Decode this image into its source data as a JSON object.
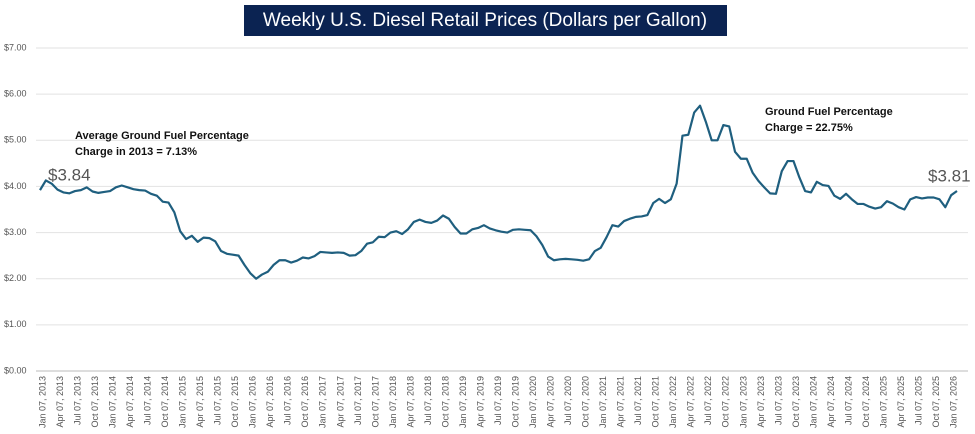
{
  "chart_data": {
    "type": "line",
    "title": "Weekly U.S. Diesel Retail Prices  (Dollars per Gallon)",
    "categories": [
      "Jan 07, 2013",
      null,
      null,
      "Apr 07, 2013",
      null,
      null,
      "Jul 07, 2013",
      null,
      null,
      "Oct 07, 2013",
      null,
      null,
      "Jan 07, 2014",
      null,
      null,
      "Apr 07, 2014",
      null,
      null,
      "Jul 07, 2014",
      null,
      null,
      "Oct 07, 2014",
      null,
      null,
      "Jan 07, 2015",
      null,
      null,
      "Apr 07, 2015",
      null,
      null,
      "Jul 07, 2015",
      null,
      null,
      "Oct 07, 2015",
      null,
      null,
      "Jan 07, 2016",
      null,
      null,
      "Apr 07, 2016",
      null,
      null,
      "Jul 07, 2016",
      null,
      null,
      "Oct 07, 2016",
      null,
      null,
      "Jan 07, 2017",
      null,
      null,
      "Apr 07, 2017",
      null,
      null,
      "Jul 07, 2017",
      null,
      null,
      "Oct 07, 2017",
      null,
      null,
      "Jan 07, 2018",
      null,
      null,
      "Apr 07, 2018",
      null,
      null,
      "Jul 07, 2018",
      null,
      null,
      "Oct 07, 2018",
      null,
      null,
      "Jan 07, 2019",
      null,
      null,
      "Apr 07, 2019",
      null,
      null,
      "Jul 07, 2019",
      null,
      null,
      "Oct 07, 2019",
      null,
      null,
      "Jan 07, 2020",
      null,
      null,
      "Apr 07, 2020",
      null,
      null,
      "Jul 07, 2020",
      null,
      null,
      "Oct 07, 2020",
      null,
      null,
      "Jan 07, 2021",
      null,
      null,
      "Apr 07, 2021",
      null,
      null,
      "Jul 07, 2021",
      null,
      null,
      "Oct 07, 2021",
      null,
      null,
      "Jan 07, 2022",
      null,
      null,
      "Apr 07, 2022",
      null,
      null,
      "Jul 07, 2022",
      null,
      null,
      "Oct 07, 2022",
      null,
      null,
      "Jan 07, 2023",
      null,
      null,
      "Apr 07, 2023",
      null,
      null,
      "Jul 07, 2023",
      null,
      null,
      "Oct 07, 2023",
      null,
      null,
      "Jan 07, 2024",
      null,
      null,
      "Apr 07, 2024",
      null,
      null,
      "Jul 07, 2024",
      null,
      null,
      "Oct 07, 2024",
      null,
      null,
      "Jan 07, 2025",
      null,
      null,
      "Apr 07, 2025",
      null,
      null,
      "Jul 07, 2025",
      null,
      null,
      "Oct 07, 2025",
      null,
      null,
      "Jan 07, 2026",
      null
    ],
    "series": [
      {
        "name": "Diesel",
        "color": "#1f5f7f",
        "values": [
          3.92,
          4.13,
          4.06,
          3.93,
          3.87,
          3.85,
          3.9,
          3.92,
          3.98,
          3.89,
          3.86,
          3.88,
          3.9,
          3.98,
          4.02,
          3.98,
          3.94,
          3.92,
          3.91,
          3.84,
          3.8,
          3.67,
          3.65,
          3.44,
          3.03,
          2.86,
          2.93,
          2.8,
          2.89,
          2.88,
          2.81,
          2.6,
          2.54,
          2.52,
          2.5,
          2.3,
          2.12,
          2.0,
          2.09,
          2.15,
          2.3,
          2.4,
          2.4,
          2.35,
          2.39,
          2.46,
          2.44,
          2.49,
          2.58,
          2.57,
          2.56,
          2.57,
          2.56,
          2.5,
          2.51,
          2.6,
          2.76,
          2.79,
          2.91,
          2.9,
          3.0,
          3.03,
          2.97,
          3.07,
          3.23,
          3.28,
          3.23,
          3.21,
          3.26,
          3.37,
          3.3,
          3.12,
          2.98,
          2.98,
          3.07,
          3.1,
          3.16,
          3.09,
          3.05,
          3.02,
          3.0,
          3.06,
          3.07,
          3.06,
          3.05,
          2.92,
          2.73,
          2.48,
          2.4,
          2.42,
          2.43,
          2.42,
          2.41,
          2.39,
          2.42,
          2.6,
          2.67,
          2.9,
          3.16,
          3.13,
          3.25,
          3.3,
          3.34,
          3.35,
          3.38,
          3.64,
          3.73,
          3.64,
          3.72,
          4.06,
          5.1,
          5.12,
          5.6,
          5.75,
          5.4,
          5.0,
          5.0,
          5.33,
          5.3,
          4.75,
          4.6,
          4.6,
          4.3,
          4.12,
          3.98,
          3.85,
          3.84,
          4.33,
          4.55,
          4.55,
          4.2,
          3.9,
          3.87,
          4.1,
          4.03,
          4.01,
          3.8,
          3.73,
          3.84,
          3.72,
          3.62,
          3.62,
          3.56,
          3.52,
          3.55,
          3.68,
          3.63,
          3.55,
          3.5,
          3.72,
          3.77,
          3.74,
          3.76,
          3.76,
          3.72,
          3.55,
          3.81,
          3.9
        ]
      }
    ],
    "ylim": [
      0,
      7
    ],
    "yticks": [
      {
        "value": 0,
        "label": "$0.00"
      },
      {
        "value": 1,
        "label": "$1.00"
      },
      {
        "value": 2,
        "label": "$2.00"
      },
      {
        "value": 3,
        "label": "$3.00"
      },
      {
        "value": 4,
        "label": "$4.00"
      },
      {
        "value": 5,
        "label": "$5.00"
      },
      {
        "value": 6,
        "label": "$6.00"
      },
      {
        "value": 7,
        "label": "$7.00"
      }
    ],
    "grid": true,
    "annotations": [
      {
        "text": "$3.84"
      },
      {
        "text": "$3.81"
      },
      {
        "lines": [
          "Average Ground Fuel Percentage",
          "Charge in 2013 = 7.13%"
        ]
      },
      {
        "lines": [
          "Ground Fuel Percentage",
          "Charge = 22.75%"
        ]
      }
    ]
  }
}
